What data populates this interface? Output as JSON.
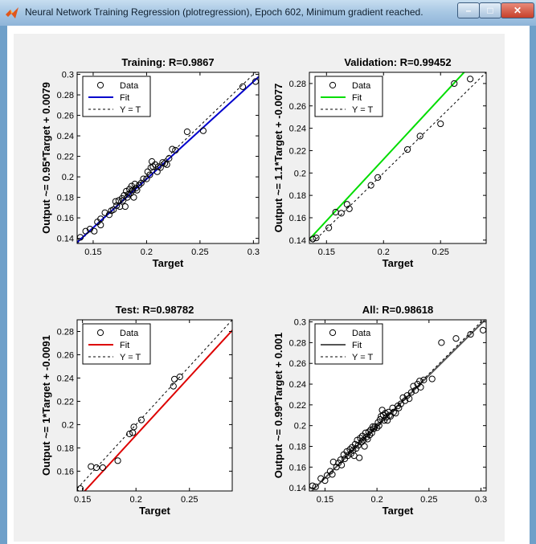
{
  "window": {
    "title": "Neural Network Training Regression (plotregression), Epoch 602, Minimum gradient reached.",
    "icon": "matlab-icon",
    "controls": [
      "minimize-icon",
      "maximize-icon",
      "close-icon"
    ]
  },
  "legend": {
    "data": "Data",
    "fit": "Fit",
    "yt": "Y = T"
  },
  "chart_data": [
    {
      "type": "scatter",
      "title": "Training: R=0.9867",
      "xlabel": "Target",
      "ylabel": "Output ~= 0.95*Target + 0.0079",
      "xlim": [
        0.135,
        0.305
      ],
      "ylim": [
        0.135,
        0.302
      ],
      "xticks": [
        0.15,
        0.2,
        0.25,
        0.3
      ],
      "yticks": [
        0.14,
        0.16,
        0.18,
        0.2,
        0.22,
        0.24,
        0.26,
        0.28,
        0.3
      ],
      "fit": {
        "slope": 0.95,
        "intercept": 0.0079,
        "color": "#0000cc"
      },
      "identity_line": true,
      "legend_position": "top-left",
      "points": [
        [
          0.138,
          0.141
        ],
        [
          0.143,
          0.147
        ],
        [
          0.147,
          0.149
        ],
        [
          0.151,
          0.147
        ],
        [
          0.154,
          0.156
        ],
        [
          0.157,
          0.153
        ],
        [
          0.157,
          0.159
        ],
        [
          0.161,
          0.165
        ],
        [
          0.165,
          0.163
        ],
        [
          0.167,
          0.167
        ],
        [
          0.169,
          0.168
        ],
        [
          0.171,
          0.176
        ],
        [
          0.172,
          0.172
        ],
        [
          0.174,
          0.177
        ],
        [
          0.175,
          0.171
        ],
        [
          0.177,
          0.179
        ],
        [
          0.178,
          0.177
        ],
        [
          0.179,
          0.182
        ],
        [
          0.18,
          0.171
        ],
        [
          0.181,
          0.186
        ],
        [
          0.182,
          0.18
        ],
        [
          0.183,
          0.183
        ],
        [
          0.184,
          0.188
        ],
        [
          0.185,
          0.184
        ],
        [
          0.186,
          0.191
        ],
        [
          0.187,
          0.187
        ],
        [
          0.188,
          0.18
        ],
        [
          0.189,
          0.193
        ],
        [
          0.19,
          0.189
        ],
        [
          0.191,
          0.187
        ],
        [
          0.193,
          0.192
        ],
        [
          0.195,
          0.194
        ],
        [
          0.197,
          0.198
        ],
        [
          0.2,
          0.198
        ],
        [
          0.201,
          0.205
        ],
        [
          0.203,
          0.202
        ],
        [
          0.204,
          0.209
        ],
        [
          0.205,
          0.215
        ],
        [
          0.206,
          0.21
        ],
        [
          0.208,
          0.212
        ],
        [
          0.21,
          0.205
        ],
        [
          0.211,
          0.21
        ],
        [
          0.213,
          0.209
        ],
        [
          0.215,
          0.214
        ],
        [
          0.217,
          0.213
        ],
        [
          0.219,
          0.212
        ],
        [
          0.221,
          0.218
        ],
        [
          0.224,
          0.227
        ],
        [
          0.227,
          0.226
        ],
        [
          0.238,
          0.244
        ],
        [
          0.253,
          0.245
        ],
        [
          0.29,
          0.288
        ],
        [
          0.302,
          0.293
        ]
      ]
    },
    {
      "type": "scatter",
      "title": "Validation: R=0.99452",
      "xlabel": "Target",
      "ylabel": "Output ~= 1.1*Target + -0.0077",
      "xlim": [
        0.135,
        0.29
      ],
      "ylim": [
        0.137,
        0.29
      ],
      "xticks": [
        0.15,
        0.2,
        0.25
      ],
      "yticks": [
        0.14,
        0.16,
        0.18,
        0.2,
        0.22,
        0.24,
        0.26,
        0.28
      ],
      "fit": {
        "slope": 1.1,
        "intercept": -0.0077,
        "color": "#00dd00"
      },
      "identity_line": true,
      "legend_position": "top-left",
      "points": [
        [
          0.138,
          0.141
        ],
        [
          0.141,
          0.142
        ],
        [
          0.152,
          0.151
        ],
        [
          0.158,
          0.165
        ],
        [
          0.163,
          0.164
        ],
        [
          0.168,
          0.172
        ],
        [
          0.17,
          0.168
        ],
        [
          0.189,
          0.189
        ],
        [
          0.195,
          0.196
        ],
        [
          0.221,
          0.221
        ],
        [
          0.232,
          0.233
        ],
        [
          0.25,
          0.244
        ],
        [
          0.262,
          0.28
        ],
        [
          0.276,
          0.284
        ]
      ]
    },
    {
      "type": "scatter",
      "title": "Test: R=0.98782",
      "xlabel": "Target",
      "ylabel": "Output ~= 1*Target + -0.0091",
      "xlim": [
        0.145,
        0.29
      ],
      "ylim": [
        0.143,
        0.29
      ],
      "xticks": [
        0.15,
        0.2,
        0.25
      ],
      "yticks": [
        0.16,
        0.18,
        0.2,
        0.22,
        0.24,
        0.26,
        0.28
      ],
      "fit": {
        "slope": 1.0,
        "intercept": -0.0091,
        "color": "#dd0000"
      },
      "identity_line": true,
      "legend_position": "top-left",
      "points": [
        [
          0.148,
          0.145
        ],
        [
          0.158,
          0.164
        ],
        [
          0.163,
          0.163
        ],
        [
          0.169,
          0.163
        ],
        [
          0.183,
          0.169
        ],
        [
          0.194,
          0.192
        ],
        [
          0.197,
          0.193
        ],
        [
          0.198,
          0.198
        ],
        [
          0.205,
          0.204
        ],
        [
          0.235,
          0.233
        ],
        [
          0.236,
          0.239
        ],
        [
          0.241,
          0.241
        ]
      ]
    },
    {
      "type": "scatter",
      "title": "All: R=0.98618",
      "xlabel": "Target",
      "ylabel": "Output ~= 0.99*Target + 0.001",
      "xlim": [
        0.135,
        0.305
      ],
      "ylim": [
        0.137,
        0.302
      ],
      "xticks": [
        0.15,
        0.2,
        0.25,
        0.3
      ],
      "yticks": [
        0.14,
        0.16,
        0.18,
        0.2,
        0.22,
        0.24,
        0.26,
        0.28,
        0.3
      ],
      "fit": {
        "slope": 0.99,
        "intercept": 0.001,
        "color": "#555555"
      },
      "identity_line": true,
      "legend_position": "top-left",
      "points": [
        [
          0.138,
          0.142
        ],
        [
          0.141,
          0.141
        ],
        [
          0.146,
          0.149
        ],
        [
          0.15,
          0.147
        ],
        [
          0.152,
          0.152
        ],
        [
          0.155,
          0.156
        ],
        [
          0.157,
          0.153
        ],
        [
          0.158,
          0.165
        ],
        [
          0.161,
          0.16
        ],
        [
          0.163,
          0.164
        ],
        [
          0.165,
          0.167
        ],
        [
          0.166,
          0.162
        ],
        [
          0.168,
          0.172
        ],
        [
          0.169,
          0.168
        ],
        [
          0.171,
          0.175
        ],
        [
          0.172,
          0.171
        ],
        [
          0.174,
          0.177
        ],
        [
          0.175,
          0.173
        ],
        [
          0.176,
          0.179
        ],
        [
          0.177,
          0.176
        ],
        [
          0.178,
          0.171
        ],
        [
          0.179,
          0.182
        ],
        [
          0.18,
          0.178
        ],
        [
          0.181,
          0.186
        ],
        [
          0.182,
          0.181
        ],
        [
          0.183,
          0.169
        ],
        [
          0.184,
          0.188
        ],
        [
          0.185,
          0.184
        ],
        [
          0.186,
          0.19
        ],
        [
          0.187,
          0.186
        ],
        [
          0.188,
          0.18
        ],
        [
          0.189,
          0.193
        ],
        [
          0.19,
          0.189
        ],
        [
          0.191,
          0.187
        ],
        [
          0.192,
          0.194
        ],
        [
          0.193,
          0.191
        ],
        [
          0.194,
          0.196
        ],
        [
          0.195,
          0.193
        ],
        [
          0.196,
          0.199
        ],
        [
          0.197,
          0.197
        ],
        [
          0.198,
          0.199
        ],
        [
          0.2,
          0.198
        ],
        [
          0.201,
          0.203
        ],
        [
          0.202,
          0.2
        ],
        [
          0.203,
          0.206
        ],
        [
          0.204,
          0.209
        ],
        [
          0.205,
          0.215
        ],
        [
          0.206,
          0.21
        ],
        [
          0.207,
          0.205
        ],
        [
          0.208,
          0.212
        ],
        [
          0.209,
          0.208
        ],
        [
          0.21,
          0.205
        ],
        [
          0.211,
          0.213
        ],
        [
          0.212,
          0.21
        ],
        [
          0.213,
          0.209
        ],
        [
          0.215,
          0.217
        ],
        [
          0.216,
          0.213
        ],
        [
          0.218,
          0.212
        ],
        [
          0.22,
          0.219
        ],
        [
          0.221,
          0.217
        ],
        [
          0.223,
          0.221
        ],
        [
          0.225,
          0.227
        ],
        [
          0.227,
          0.224
        ],
        [
          0.229,
          0.229
        ],
        [
          0.231,
          0.226
        ],
        [
          0.233,
          0.232
        ],
        [
          0.235,
          0.238
        ],
        [
          0.237,
          0.234
        ],
        [
          0.239,
          0.24
        ],
        [
          0.241,
          0.243
        ],
        [
          0.242,
          0.237
        ],
        [
          0.245,
          0.244
        ],
        [
          0.253,
          0.245
        ],
        [
          0.262,
          0.28
        ],
        [
          0.276,
          0.284
        ],
        [
          0.29,
          0.288
        ],
        [
          0.302,
          0.292
        ]
      ]
    }
  ]
}
